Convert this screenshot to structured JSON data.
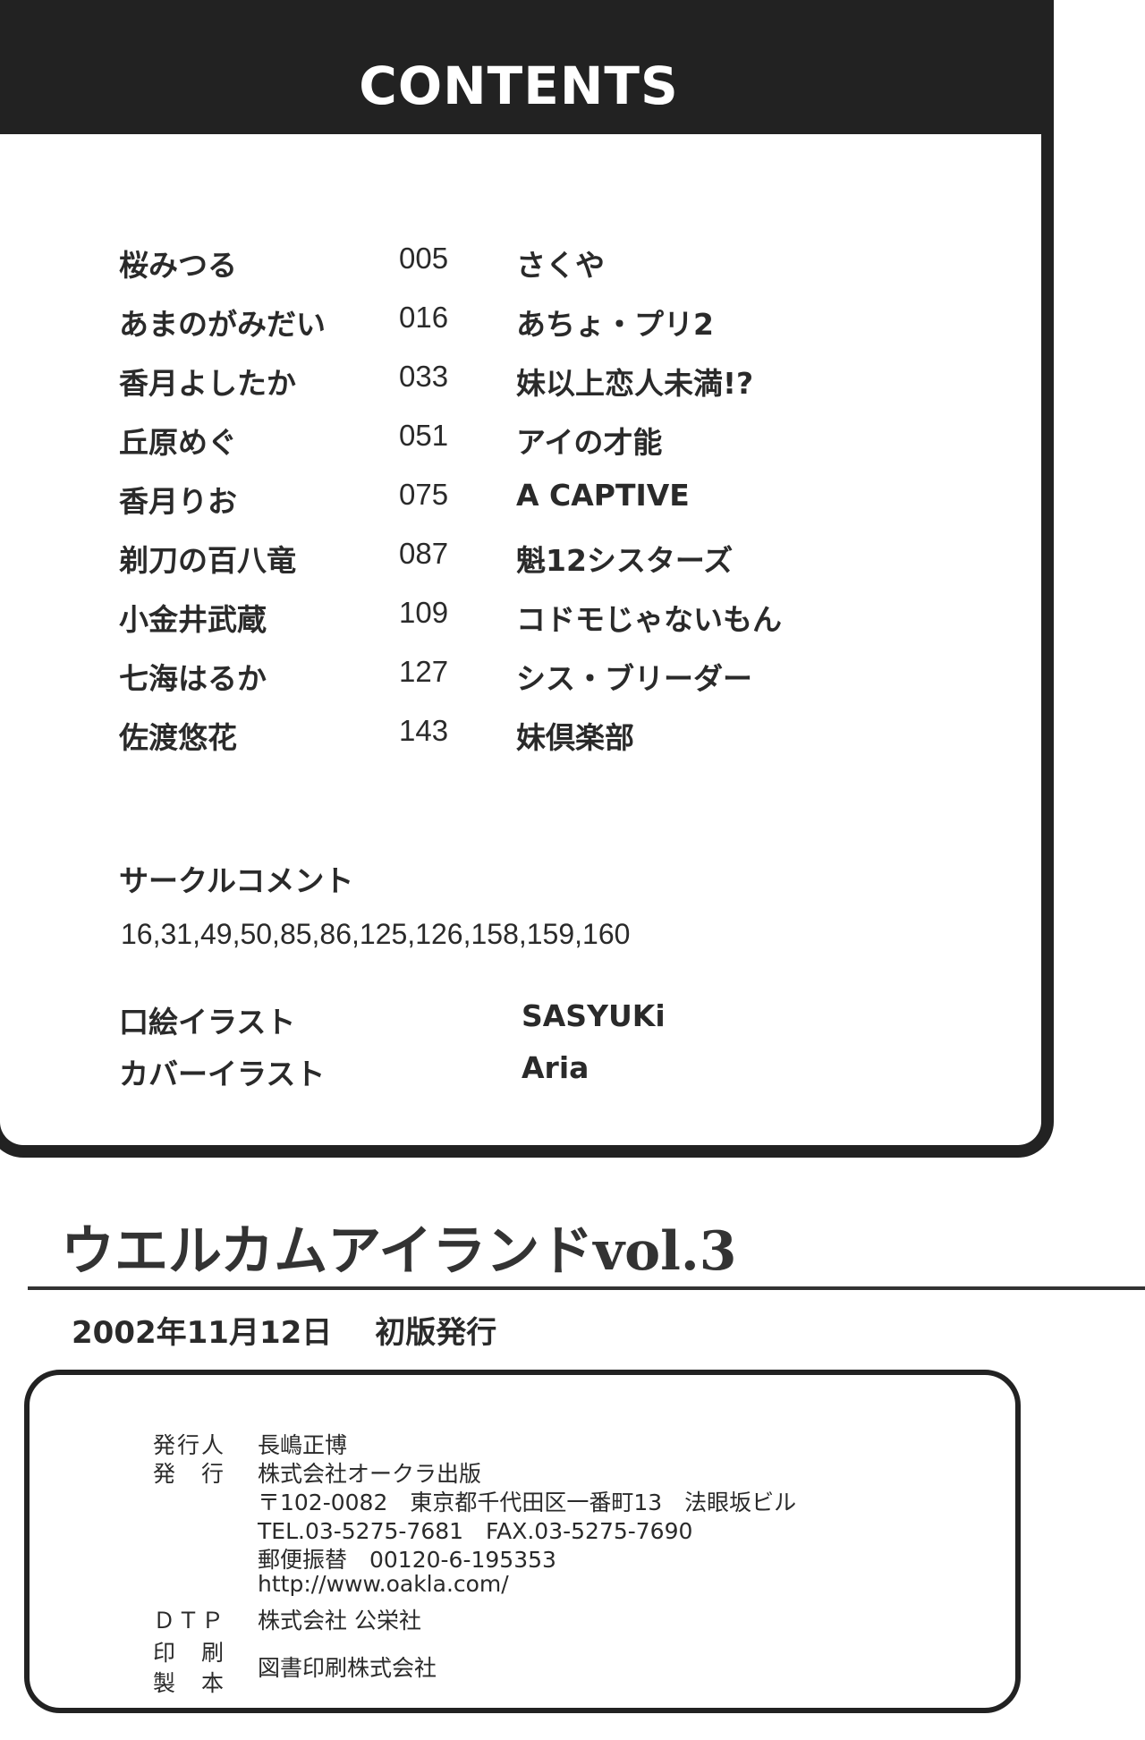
{
  "header": {
    "title": "CONTENTS"
  },
  "toc": [
    {
      "author": "桜みつる",
      "page": "005",
      "title": "さくや"
    },
    {
      "author": "あまのがみだい",
      "page": "016",
      "title": "あちょ・プリ2"
    },
    {
      "author": "香月よしたか",
      "page": "033",
      "title": "妹以上恋人未満!?"
    },
    {
      "author": "丘原めぐ",
      "page": "051",
      "title": "アイの才能"
    },
    {
      "author": "香月りお",
      "page": "075",
      "title": "A CAPTIVE"
    },
    {
      "author": "剃刀の百八竜",
      "page": "087",
      "title": "魁12シスターズ"
    },
    {
      "author": "小金井武蔵",
      "page": "109",
      "title": "コドモじゃないもん"
    },
    {
      "author": "七海はるか",
      "page": "127",
      "title": "シス・ブリーダー"
    },
    {
      "author": "佐渡悠花",
      "page": "143",
      "title": "妹倶楽部"
    }
  ],
  "circle_comment": {
    "label": "サークルコメント",
    "pages": "16,31,49,50,85,86,125,126,158,159,160"
  },
  "illustrations": [
    {
      "label": "口絵イラスト",
      "artist": "SASYUKi"
    },
    {
      "label": "カバーイラスト",
      "artist": "Aria"
    }
  ],
  "book": {
    "title": "ウエルカムアイランドvol.3",
    "date": "2002年11月12日",
    "edition": "初版発行"
  },
  "colophon": [
    {
      "label": "発行人",
      "value": "長嶋正博"
    },
    {
      "label": "発　行",
      "value": "株式会社オークラ出版"
    },
    {
      "label": "",
      "value": "〒102-0082　東京都千代田区一番町13　法眼坂ビル"
    },
    {
      "label": "",
      "value": "TEL.03-5275-7681　FAX.03-5275-7690"
    },
    {
      "label": "",
      "value": "郵便振替　00120-6-195353"
    },
    {
      "label": "",
      "value": "http://www.oakla.com/"
    },
    {
      "label": "ＤＴＰ",
      "value": "株式会社 公栄社"
    },
    {
      "label": "印　刷",
      "value": "図書印刷株式会社"
    },
    {
      "label": "製　本",
      "value": ""
    }
  ]
}
